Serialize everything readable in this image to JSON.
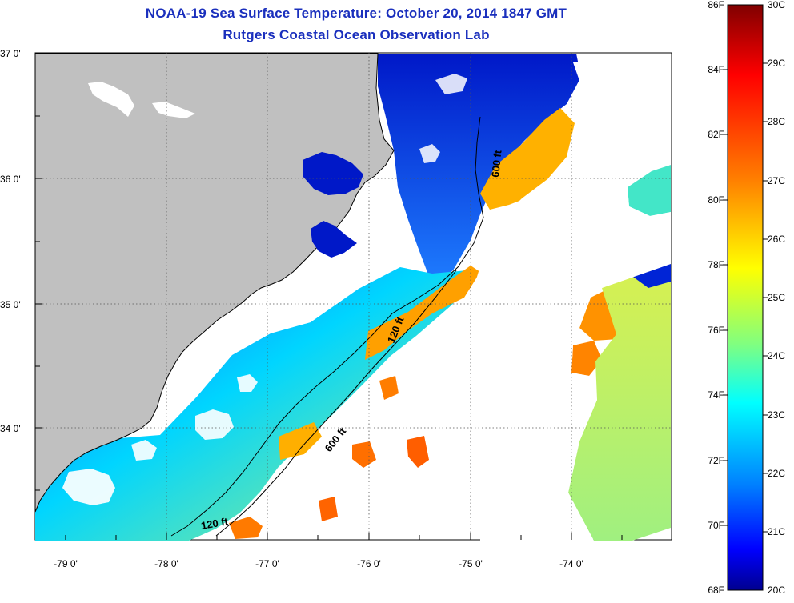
{
  "header": {
    "title": "NOAA-19 Sea Surface Temperature:  October 20, 2014 1847 GMT",
    "subtitle": "Rutgers Coastal Ocean Observation Lab"
  },
  "map": {
    "lat_labels": [
      "37 0'",
      "36 0'",
      "35 0'",
      "34 0'"
    ],
    "lon_labels": [
      "-79 0'",
      "-78 0'",
      "-77 0'",
      "-76 0'",
      "-75 0'",
      "-74 0'"
    ],
    "isobath_labels": [
      "600 ft",
      "120 ft",
      "600 ft",
      "120 ft"
    ],
    "colors": {
      "land": "#c0c0c0",
      "cloud": "#ffffff",
      "contour": "#000000"
    }
  },
  "colorbar": {
    "fahrenheit_labels": [
      "86F",
      "84F",
      "82F",
      "80F",
      "78F",
      "76F",
      "74F",
      "72F",
      "70F",
      "68F"
    ],
    "celsius_labels": [
      "30C",
      "29C",
      "28C",
      "27C",
      "26C",
      "25C",
      "24C",
      "23C",
      "22C",
      "21C",
      "20C"
    ],
    "colors": [
      "#00008f",
      "#0000ff",
      "#0080ff",
      "#00ffff",
      "#80ff80",
      "#ffff00",
      "#ff8000",
      "#ff0000",
      "#800000"
    ]
  }
}
